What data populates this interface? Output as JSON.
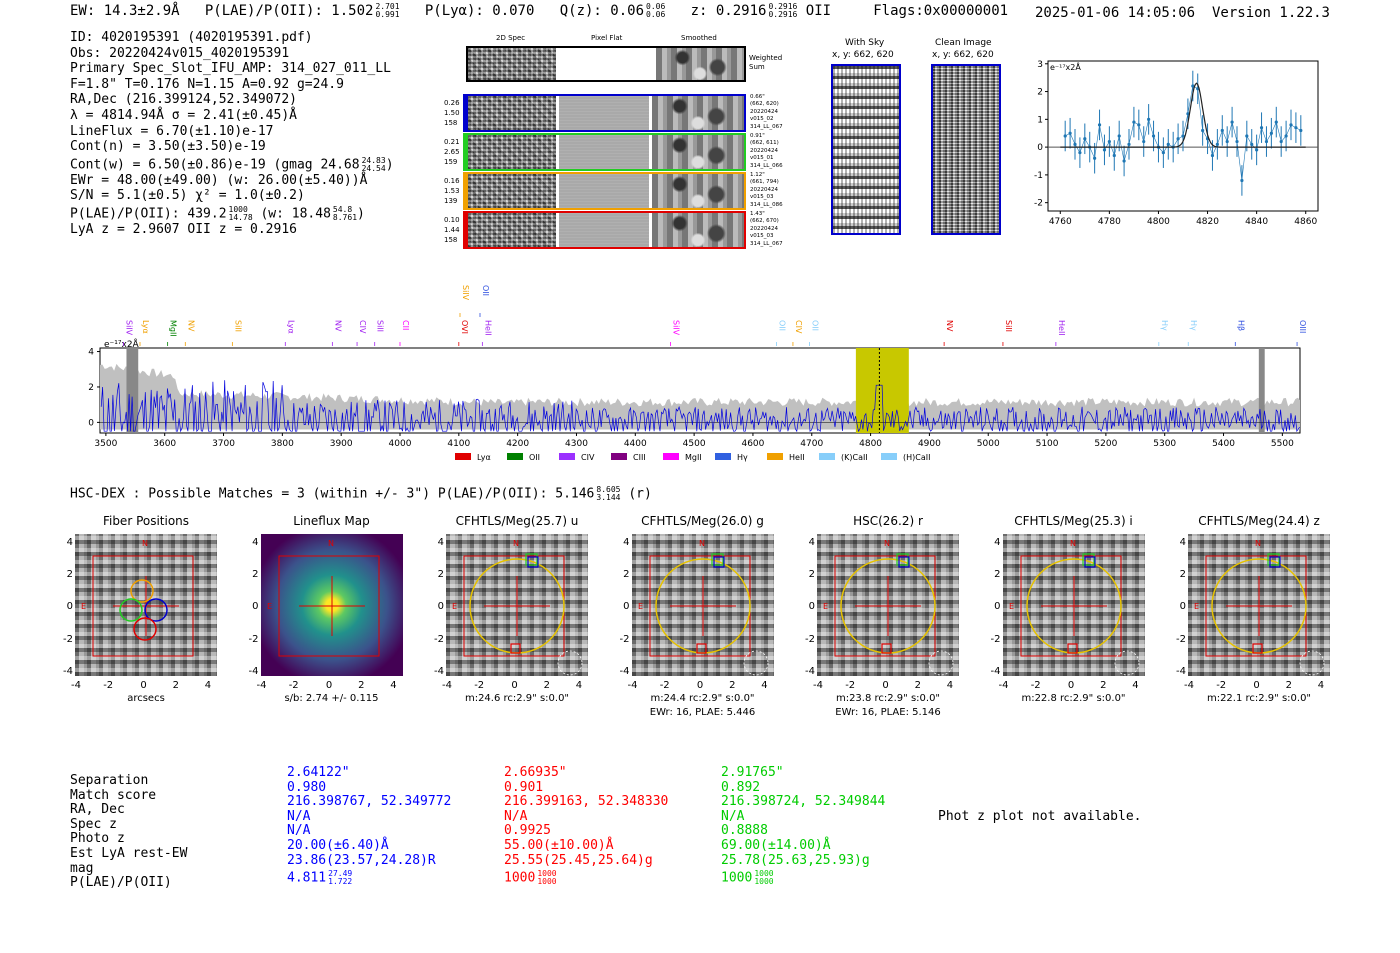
{
  "header": {
    "ew": "EW: 14.3±2.9Å",
    "plae_label": "P(LAE)/P(OII): 1.502",
    "plae_hi": "2.701",
    "plae_lo": "0.991",
    "plya": "P(Lyα): 0.070",
    "qz_label": "Q(z): 0.06",
    "qz_hi": "0.06",
    "qz_lo": "0.06",
    "z_label": "z: 0.2916",
    "z_hi": "0.2916",
    "z_lo": "0.2916",
    "z_line": "OII",
    "flags": "Flags:0x00000001",
    "timestamp": "2025-01-06 14:05:06",
    "version": "Version 1.22.3"
  },
  "info": {
    "id": "ID: 4020195391 (4020195391.pdf)",
    "obs": "Obs: 20220424v015_4020195391",
    "primary": "Primary Spec_Slot_IFU_AMP: 314_027_011_LL",
    "params": "F=1.8\"  T=0.176  N=1.15  A=0.92  g=24.9",
    "radec": "RA,Dec (216.399124,52.349072)",
    "lambda": "λ = 4814.94Å  σ = 2.41(±0.45)Å",
    "lineflux": "LineFlux = 6.70(±1.10)e-17",
    "contn": "Cont(n) = 3.50(±3.50)e-19",
    "contw": "Cont(w) = 6.50(±0.86)e-19 (gmag 24.68",
    "contw_hi": "24.83",
    "contw_lo": "24.54",
    "ewr": "EWr = 48.00(±49.00) (w: 26.00(±5.40))Å",
    "sn": "S/N = 5.1(±0.5)  χ² = 1.0(±0.2)",
    "plae": "P(LAE)/P(OII): 439.2",
    "plae_hi": "1000",
    "plae_lo": "14.78",
    "plae_w": "(w: 18.48",
    "plae_w_hi": "54.8",
    "plae_w_lo": "8.761",
    "lya_z": "LyA z = 2.9607   OII z = 0.2916"
  },
  "spec2d": {
    "col_2d": "2D Spec",
    "col_flat": "Pixel Flat",
    "col_smooth": "Smoothed",
    "weighted": "Weighted Sum",
    "rows": [
      {
        "color": "#0000cc",
        "left": [
          "0.26",
          "1.50",
          "158"
        ],
        "right": [
          "0.66\"",
          "(662, 620)",
          "20220424",
          "v015_02",
          "314_LL_067"
        ]
      },
      {
        "color": "#22cc22",
        "left": [
          "0.21",
          "2.65",
          "159"
        ],
        "right": [
          "0.91\"",
          "(662, 611)",
          "20220424",
          "v015_01",
          "314_LL_066"
        ]
      },
      {
        "color": "#f0a000",
        "left": [
          "0.16",
          "1.53",
          "139"
        ],
        "right": [
          "1.12\"",
          "(661, 794)",
          "20220424",
          "v015_03",
          "314_LL_086"
        ]
      },
      {
        "color": "#e00000",
        "left": [
          "0.10",
          "1.44",
          "158"
        ],
        "right": [
          "1.43\"",
          "(662, 670)",
          "20220424",
          "v015_03",
          "314_LL_067"
        ]
      }
    ]
  },
  "sky": {
    "with_sky": "With Sky",
    "with_sky_xy": "x, y: 662, 620",
    "clean": "Clean Image",
    "clean_xy": "x, y: 662, 620"
  },
  "zoom_chart": {
    "type": "line",
    "unit": "e⁻¹⁷x2Å",
    "xlim": [
      4755,
      4865
    ],
    "ylim": [
      -2.3,
      3.1
    ],
    "xticks": [
      4760,
      4780,
      4800,
      4820,
      4840,
      4860
    ],
    "yticks": [
      -2,
      -1,
      0,
      1,
      2,
      3
    ],
    "points": [
      [
        4762,
        0.4
      ],
      [
        4764,
        0.5
      ],
      [
        4766,
        0.1
      ],
      [
        4768,
        -0.2
      ],
      [
        4770,
        0.3
      ],
      [
        4772,
        0.0
      ],
      [
        4774,
        -0.4
      ],
      [
        4776,
        0.8
      ],
      [
        4778,
        -0.1
      ],
      [
        4780,
        0.2
      ],
      [
        4782,
        -0.3
      ],
      [
        4784,
        0.4
      ],
      [
        4786,
        -0.5
      ],
      [
        4788,
        0.1
      ],
      [
        4790,
        0.9
      ],
      [
        4792,
        0.8
      ],
      [
        4794,
        0.2
      ],
      [
        4796,
        1.0
      ],
      [
        4798,
        0.4
      ],
      [
        4800,
        0.0
      ],
      [
        4802,
        -0.2
      ],
      [
        4804,
        0.1
      ],
      [
        4806,
        0.0
      ],
      [
        4808,
        0.3
      ],
      [
        4810,
        0.4
      ],
      [
        4812,
        1.2
      ],
      [
        4814,
        2.2
      ],
      [
        4816,
        2.1
      ],
      [
        4818,
        0.6
      ],
      [
        4820,
        0.3
      ],
      [
        4822,
        -0.3
      ],
      [
        4824,
        0.1
      ],
      [
        4826,
        0.6
      ],
      [
        4828,
        0.2
      ],
      [
        4830,
        0.9
      ],
      [
        4832,
        0.2
      ],
      [
        4834,
        -1.2
      ],
      [
        4836,
        0.4
      ],
      [
        4838,
        0.1
      ],
      [
        4840,
        -0.1
      ],
      [
        4842,
        0.7
      ],
      [
        4844,
        0.2
      ],
      [
        4846,
        0.5
      ],
      [
        4848,
        0.9
      ],
      [
        4850,
        0.2
      ],
      [
        4852,
        0.4
      ],
      [
        4854,
        0.8
      ],
      [
        4856,
        0.7
      ],
      [
        4858,
        0.6
      ]
    ],
    "fit_center": 4815.5,
    "fit_amp": 2.3,
    "fit_sigma": 2.5
  },
  "full_spectrum": {
    "type": "line",
    "unit": "e⁻¹⁷x2Å",
    "xlim": [
      3490,
      5530
    ],
    "ylim": [
      -0.6,
      4.2
    ],
    "xticks": [
      3500,
      3600,
      3700,
      3800,
      3900,
      4000,
      4100,
      4200,
      4300,
      4400,
      4500,
      4600,
      4700,
      4800,
      4900,
      5000,
      5100,
      5200,
      5300,
      5400,
      5500
    ],
    "yticks": [
      0,
      2,
      4
    ],
    "highlight": [
      4775,
      4865
    ],
    "line_marker": 4815,
    "line_labels": [
      {
        "w": 3530,
        "label": "SiIV",
        "color": "#a020f0"
      },
      {
        "w": 3558,
        "label": "Lyα",
        "color": "#f0a000"
      },
      {
        "w": 3605,
        "label": "MgII",
        "color": "#008000"
      },
      {
        "w": 3635,
        "label": "NV",
        "color": "#f0a000"
      },
      {
        "w": 3715,
        "label": "SiII",
        "color": "#f0a000"
      },
      {
        "w": 3805,
        "label": "Lyα",
        "color": "#a020f0"
      },
      {
        "w": 3885,
        "label": "NV",
        "color": "#a020f0"
      },
      {
        "w": 3927,
        "label": "CIV",
        "color": "#a020f0"
      },
      {
        "w": 3957,
        "label": "SiII",
        "color": "#a020f0"
      },
      {
        "w": 4000,
        "label": "CII",
        "color": "#ff00ff"
      },
      {
        "w": 4100,
        "label": "OVI",
        "color": "#e00000"
      },
      {
        "w": 4140,
        "label": "HeII",
        "color": "#a020f0"
      },
      {
        "w": 4102,
        "label": "SiIV",
        "color": "#f0a000",
        "high": true
      },
      {
        "w": 4136,
        "label": "OII",
        "color": "#3050e0",
        "high": true
      },
      {
        "w": 4460,
        "label": "SiIV",
        "color": "#ff00ff"
      },
      {
        "w": 4640,
        "label": "OII",
        "color": "#87cefa"
      },
      {
        "w": 4668,
        "label": "CIV",
        "color": "#f0a000"
      },
      {
        "w": 4696,
        "label": "OII",
        "color": "#87cefa"
      },
      {
        "w": 4925,
        "label": "NV",
        "color": "#e00000"
      },
      {
        "w": 5025,
        "label": "SiII",
        "color": "#e00000"
      },
      {
        "w": 5115,
        "label": "HeII",
        "color": "#a020f0"
      },
      {
        "w": 5290,
        "label": "Hγ",
        "color": "#87cefa"
      },
      {
        "w": 5340,
        "label": "Hγ",
        "color": "#87cefa"
      },
      {
        "w": 5420,
        "label": "Hβ",
        "color": "#3050e0"
      },
      {
        "w": 5525,
        "label": "OIII",
        "color": "#3050e0"
      }
    ],
    "legend": [
      {
        "label": "Lyα",
        "color": "#e00000"
      },
      {
        "label": "OII",
        "color": "#008000"
      },
      {
        "label": "CIV",
        "color": "#9b30ff"
      },
      {
        "label": "CIII",
        "color": "#800080"
      },
      {
        "label": "MgII",
        "color": "#ff00ff"
      },
      {
        "label": "Hγ",
        "color": "#3060e0"
      },
      {
        "label": "HeII",
        "color": "#f0a000"
      },
      {
        "label": "(K)CaII",
        "color": "#87cefa"
      },
      {
        "label": "(H)CaII",
        "color": "#87cefa"
      }
    ]
  },
  "hsc": {
    "title": "HSC-DEX : Possible Matches = 3 (within +/- 3\")  P(LAE)/P(OII): 5.146",
    "hi": "8.605",
    "lo": "3.144",
    "band": "(r)"
  },
  "cutouts": [
    {
      "title": "Fiber Positions",
      "xlabel": "arcsecs",
      "extra": "",
      "kind": "fiber"
    },
    {
      "title": "Lineflux Map",
      "xlabel": "s/b: 2.74 +/- 0.115",
      "extra": "",
      "kind": "lineflux"
    },
    {
      "title": "CFHTLS/Meg(25.7) u",
      "xlabel": "m:24.6 rc:2.9\"  s:0.0\"",
      "extra": "",
      "kind": "img"
    },
    {
      "title": "CFHTLS/Meg(26.0) g",
      "xlabel": "m:24.4 rc:2.9\"  s:0.0\"",
      "extra": "EWr: 16, PLAE: 5.446",
      "kind": "img"
    },
    {
      "title": "HSC(26.2) r",
      "xlabel": "m:23.8 rc:2.9\"  s:0.0\"",
      "extra": "EWr: 16, PLAE: 5.146",
      "kind": "img"
    },
    {
      "title": "CFHTLS/Meg(25.3) i",
      "xlabel": "m:22.8 rc:2.9\"  s:0.0\"",
      "extra": "",
      "kind": "img"
    },
    {
      "title": "CFHTLS/Meg(24.4) z",
      "xlabel": "m:22.1 rc:2.9\"  s:0.0\"",
      "extra": "",
      "kind": "img"
    }
  ],
  "cutout_axes": {
    "ticks": [
      "-4",
      "-2",
      "0",
      "2",
      "4"
    ],
    "n_label": "N",
    "e_label": "E"
  },
  "matches": {
    "labels": [
      "Separation",
      "Match score",
      "RA, Dec",
      "Spec z",
      "Photo z",
      "Est LyA rest-EW",
      "mag",
      "P(LAE)/P(OII)"
    ],
    "columns": [
      {
        "color": "#0000ff",
        "values": [
          "2.64122\"",
          "0.980",
          "216.398767, 52.349772",
          "N/A",
          "N/A",
          "20.00(±6.40)Å",
          "23.86(23.57,24.28)R",
          "4.811"
        ],
        "hi": "27.49",
        "lo": "1.722"
      },
      {
        "color": "#ff0000",
        "values": [
          "2.66935\"",
          "0.901",
          "216.399163, 52.348330",
          "N/A",
          "0.9925",
          "55.00(±10.00)Å",
          "25.55(25.45,25.64)g",
          "1000"
        ],
        "hi": "1000",
        "lo": "1000"
      },
      {
        "color": "#00cc00",
        "values": [
          "2.91765\"",
          "0.892",
          "216.398724, 52.349844",
          "N/A",
          "0.8888",
          "69.00(±14.00)Å",
          "25.78(25.63,25.93)g",
          "1000"
        ],
        "hi": "1000",
        "lo": "1000"
      }
    ],
    "photz_note": "Phot z plot not available."
  }
}
